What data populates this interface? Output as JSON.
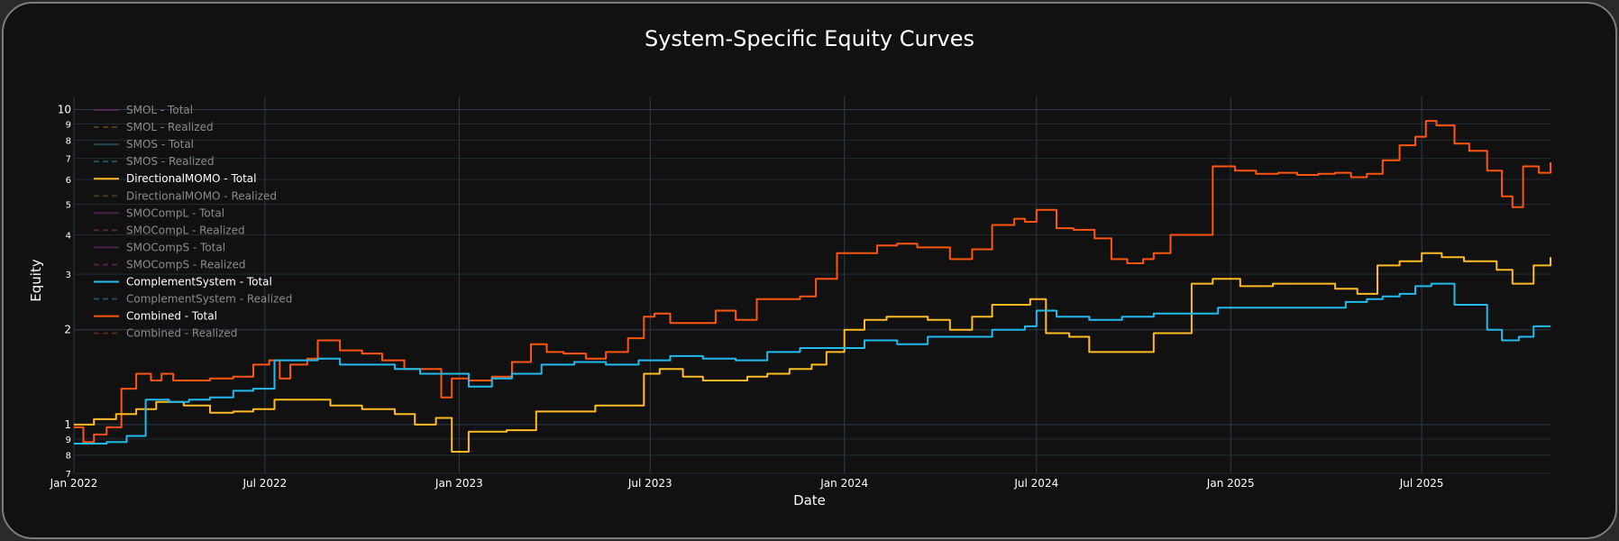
{
  "chart_data": {
    "type": "line",
    "title": "System-Specific Equity Curves",
    "xlabel": "Date",
    "ylabel": "Equity",
    "y_scale": "log",
    "ylim": [
      0.7,
      11
    ],
    "xlim": [
      "2022-01-01",
      "2025-10-31"
    ],
    "x_ticks": [
      "Jan 2022",
      "Jul 2022",
      "Jan 2023",
      "Jul 2023",
      "Jan 2024",
      "Jul 2024",
      "Jan 2025",
      "Jul 2025"
    ],
    "x_tick_dates": [
      "2022-01-01",
      "2022-07-01",
      "2023-01-01",
      "2023-07-01",
      "2024-01-01",
      "2024-07-01",
      "2025-01-01",
      "2025-07-01"
    ],
    "y_major_ticks": [
      {
        "value": 1,
        "label": "1"
      },
      {
        "value": 2,
        "label": "2"
      },
      {
        "value": 10,
        "label": "10"
      }
    ],
    "y_minor_ticks": [
      {
        "value": 0.7,
        "label": "7"
      },
      {
        "value": 0.8,
        "label": "8"
      },
      {
        "value": 0.9,
        "label": "9"
      },
      {
        "value": 3,
        "label": "3"
      },
      {
        "value": 4,
        "label": "4"
      },
      {
        "value": 5,
        "label": "5"
      },
      {
        "value": 6,
        "label": "6"
      },
      {
        "value": 7,
        "label": "7"
      },
      {
        "value": 8,
        "label": "8"
      },
      {
        "value": 9,
        "label": "9"
      }
    ],
    "grid": true,
    "legend_position": "top-left",
    "legend": [
      {
        "name": "SMOL - Total",
        "color": "#7b2d7b",
        "dash": "solid",
        "visible": false
      },
      {
        "name": "SMOL - Realized",
        "color": "#8a5a1e",
        "dash": "dash",
        "visible": false
      },
      {
        "name": "SMOS - Total",
        "color": "#2f6f8a",
        "dash": "solid",
        "visible": false
      },
      {
        "name": "SMOS - Realized",
        "color": "#2f8aa0",
        "dash": "dash",
        "visible": false
      },
      {
        "name": "DirectionalMOMO - Total",
        "color": "#ffbb22",
        "dash": "solid",
        "visible": true
      },
      {
        "name": "DirectionalMOMO - Realized",
        "color": "#6e5a2a",
        "dash": "dash",
        "visible": false
      },
      {
        "name": "SMOCompL - Total",
        "color": "#7b2d7b",
        "dash": "solid",
        "visible": false
      },
      {
        "name": "SMOCompL - Realized",
        "color": "#8a3a5a",
        "dash": "dash",
        "visible": false
      },
      {
        "name": "SMOCompS - Total",
        "color": "#7b2d7b",
        "dash": "solid",
        "visible": false
      },
      {
        "name": "SMOCompS - Realized",
        "color": "#8a2d7b",
        "dash": "dash",
        "visible": false
      },
      {
        "name": "ComplementSystem - Total",
        "color": "#22bbee",
        "dash": "solid",
        "visible": true
      },
      {
        "name": "ComplementSystem - Realized",
        "color": "#2a7fa0",
        "dash": "dash",
        "visible": false
      },
      {
        "name": "Combined - Total",
        "color": "#ff5511",
        "dash": "solid",
        "visible": true
      },
      {
        "name": "Combined - Realized",
        "color": "#8a3a22",
        "dash": "dash",
        "visible": false
      }
    ],
    "series": [
      {
        "name": "Combined - Total",
        "color": "#ff5511",
        "x": [
          "2022-01-01",
          "2022-01-10",
          "2022-01-20",
          "2022-02-01",
          "2022-02-15",
          "2022-03-01",
          "2022-03-15",
          "2022-03-25",
          "2022-04-05",
          "2022-04-20",
          "2022-05-10",
          "2022-06-01",
          "2022-06-20",
          "2022-07-05",
          "2022-07-15",
          "2022-07-25",
          "2022-08-10",
          "2022-08-20",
          "2022-09-10",
          "2022-10-01",
          "2022-10-20",
          "2022-11-10",
          "2022-12-01",
          "2022-12-15",
          "2022-12-25",
          "2023-01-10",
          "2023-02-01",
          "2023-02-20",
          "2023-03-10",
          "2023-03-25",
          "2023-04-10",
          "2023-05-01",
          "2023-05-20",
          "2023-06-10",
          "2023-06-25",
          "2023-07-05",
          "2023-07-20",
          "2023-08-10",
          "2023-09-01",
          "2023-09-20",
          "2023-10-10",
          "2023-11-01",
          "2023-11-20",
          "2023-12-05",
          "2023-12-25",
          "2024-01-15",
          "2024-02-01",
          "2024-02-20",
          "2024-03-10",
          "2024-03-25",
          "2024-04-10",
          "2024-05-01",
          "2024-05-20",
          "2024-06-10",
          "2024-06-20",
          "2024-07-01",
          "2024-07-20",
          "2024-08-05",
          "2024-08-25",
          "2024-09-10",
          "2024-09-25",
          "2024-10-10",
          "2024-10-20",
          "2024-11-05",
          "2024-11-25",
          "2024-12-15",
          "2025-01-05",
          "2025-01-25",
          "2025-02-15",
          "2025-03-05",
          "2025-03-25",
          "2025-04-10",
          "2025-04-25",
          "2025-05-10",
          "2025-05-25",
          "2025-06-10",
          "2025-06-25",
          "2025-07-05",
          "2025-07-15",
          "2025-08-01",
          "2025-08-15",
          "2025-09-01",
          "2025-09-15",
          "2025-09-25",
          "2025-10-05",
          "2025-10-20",
          "2025-10-31"
        ],
        "y": [
          0.98,
          0.88,
          0.93,
          0.98,
          1.3,
          1.45,
          1.38,
          1.45,
          1.38,
          1.38,
          1.4,
          1.42,
          1.55,
          1.6,
          1.4,
          1.55,
          1.62,
          1.85,
          1.72,
          1.68,
          1.6,
          1.5,
          1.5,
          1.22,
          1.4,
          1.38,
          1.42,
          1.58,
          1.8,
          1.7,
          1.68,
          1.62,
          1.7,
          1.88,
          2.2,
          2.25,
          2.1,
          2.1,
          2.3,
          2.15,
          2.5,
          2.5,
          2.55,
          2.9,
          3.5,
          3.5,
          3.7,
          3.75,
          3.65,
          3.65,
          3.35,
          3.6,
          4.3,
          4.5,
          4.4,
          4.8,
          4.2,
          4.15,
          3.9,
          3.35,
          3.25,
          3.35,
          3.5,
          4.0,
          4.0,
          6.6,
          6.4,
          6.25,
          6.3,
          6.2,
          6.25,
          6.3,
          6.1,
          6.25,
          6.9,
          7.7,
          8.2,
          9.2,
          8.9,
          7.8,
          7.4,
          6.4,
          5.3,
          4.9,
          6.6,
          6.3,
          6.8
        ]
      },
      {
        "name": "DirectionalMOMO - Total",
        "color": "#ffbb22",
        "x": [
          "2022-01-01",
          "2022-01-20",
          "2022-02-10",
          "2022-03-01",
          "2022-03-20",
          "2022-04-15",
          "2022-05-10",
          "2022-06-01",
          "2022-06-20",
          "2022-07-10",
          "2022-08-01",
          "2022-09-01",
          "2022-10-01",
          "2022-11-01",
          "2022-11-20",
          "2022-12-10",
          "2022-12-25",
          "2023-01-10",
          "2023-02-15",
          "2023-03-15",
          "2023-04-01",
          "2023-05-10",
          "2023-06-10",
          "2023-06-25",
          "2023-07-10",
          "2023-08-01",
          "2023-08-20",
          "2023-09-10",
          "2023-10-01",
          "2023-10-20",
          "2023-11-10",
          "2023-12-01",
          "2023-12-15",
          "2024-01-01",
          "2024-01-20",
          "2024-02-10",
          "2024-03-01",
          "2024-03-20",
          "2024-04-10",
          "2024-05-01",
          "2024-05-20",
          "2024-06-10",
          "2024-06-25",
          "2024-07-10",
          "2024-08-01",
          "2024-08-20",
          "2024-09-10",
          "2024-10-01",
          "2024-10-20",
          "2024-11-05",
          "2024-11-25",
          "2024-12-15",
          "2025-01-10",
          "2025-02-10",
          "2025-03-10",
          "2025-04-10",
          "2025-05-01",
          "2025-05-20",
          "2025-06-10",
          "2025-07-01",
          "2025-07-20",
          "2025-08-10",
          "2025-08-25",
          "2025-09-10",
          "2025-09-25",
          "2025-10-15",
          "2025-10-31"
        ],
        "y": [
          1.0,
          1.04,
          1.08,
          1.12,
          1.18,
          1.15,
          1.09,
          1.1,
          1.12,
          1.2,
          1.2,
          1.15,
          1.12,
          1.08,
          1.0,
          1.05,
          0.82,
          0.95,
          0.96,
          1.1,
          1.1,
          1.15,
          1.15,
          1.45,
          1.5,
          1.42,
          1.38,
          1.38,
          1.42,
          1.45,
          1.5,
          1.55,
          1.7,
          2.0,
          2.15,
          2.2,
          2.2,
          2.15,
          2.0,
          2.2,
          2.4,
          2.4,
          2.5,
          1.95,
          1.9,
          1.7,
          1.7,
          1.7,
          1.95,
          1.95,
          2.8,
          2.9,
          2.75,
          2.8,
          2.8,
          2.7,
          2.6,
          3.2,
          3.3,
          3.5,
          3.4,
          3.3,
          3.3,
          3.1,
          2.8,
          3.2,
          3.4
        ]
      },
      {
        "name": "ComplementSystem - Total",
        "color": "#22bbee",
        "x": [
          "2022-01-01",
          "2022-02-01",
          "2022-02-20",
          "2022-03-10",
          "2022-04-01",
          "2022-04-20",
          "2022-05-10",
          "2022-06-01",
          "2022-06-20",
          "2022-07-10",
          "2022-08-01",
          "2022-08-20",
          "2022-09-10",
          "2022-10-01",
          "2022-11-01",
          "2022-11-25",
          "2022-12-15",
          "2023-01-10",
          "2023-02-01",
          "2023-02-20",
          "2023-03-20",
          "2023-04-20",
          "2023-05-20",
          "2023-06-20",
          "2023-07-20",
          "2023-08-20",
          "2023-09-20",
          "2023-10-20",
          "2023-11-20",
          "2023-12-20",
          "2024-01-20",
          "2024-02-20",
          "2024-03-20",
          "2024-04-20",
          "2024-05-20",
          "2024-06-20",
          "2024-07-01",
          "2024-07-20",
          "2024-08-20",
          "2024-09-20",
          "2024-10-20",
          "2024-11-20",
          "2024-12-20",
          "2025-01-20",
          "2025-02-20",
          "2025-03-20",
          "2025-04-20",
          "2025-05-10",
          "2025-05-25",
          "2025-06-10",
          "2025-06-25",
          "2025-07-10",
          "2025-08-01",
          "2025-08-20",
          "2025-09-01",
          "2025-09-15",
          "2025-10-01",
          "2025-10-15",
          "2025-10-31"
        ],
        "y": [
          0.87,
          0.88,
          0.92,
          1.2,
          1.18,
          1.2,
          1.22,
          1.28,
          1.3,
          1.6,
          1.6,
          1.62,
          1.55,
          1.55,
          1.5,
          1.45,
          1.45,
          1.32,
          1.4,
          1.45,
          1.55,
          1.58,
          1.55,
          1.6,
          1.65,
          1.62,
          1.6,
          1.7,
          1.75,
          1.75,
          1.85,
          1.8,
          1.9,
          1.9,
          2.0,
          2.05,
          2.3,
          2.2,
          2.15,
          2.2,
          2.25,
          2.25,
          2.35,
          2.35,
          2.35,
          2.35,
          2.45,
          2.5,
          2.55,
          2.6,
          2.75,
          2.8,
          2.4,
          2.4,
          2.0,
          1.85,
          1.9,
          2.05,
          2.05
        ]
      }
    ]
  }
}
